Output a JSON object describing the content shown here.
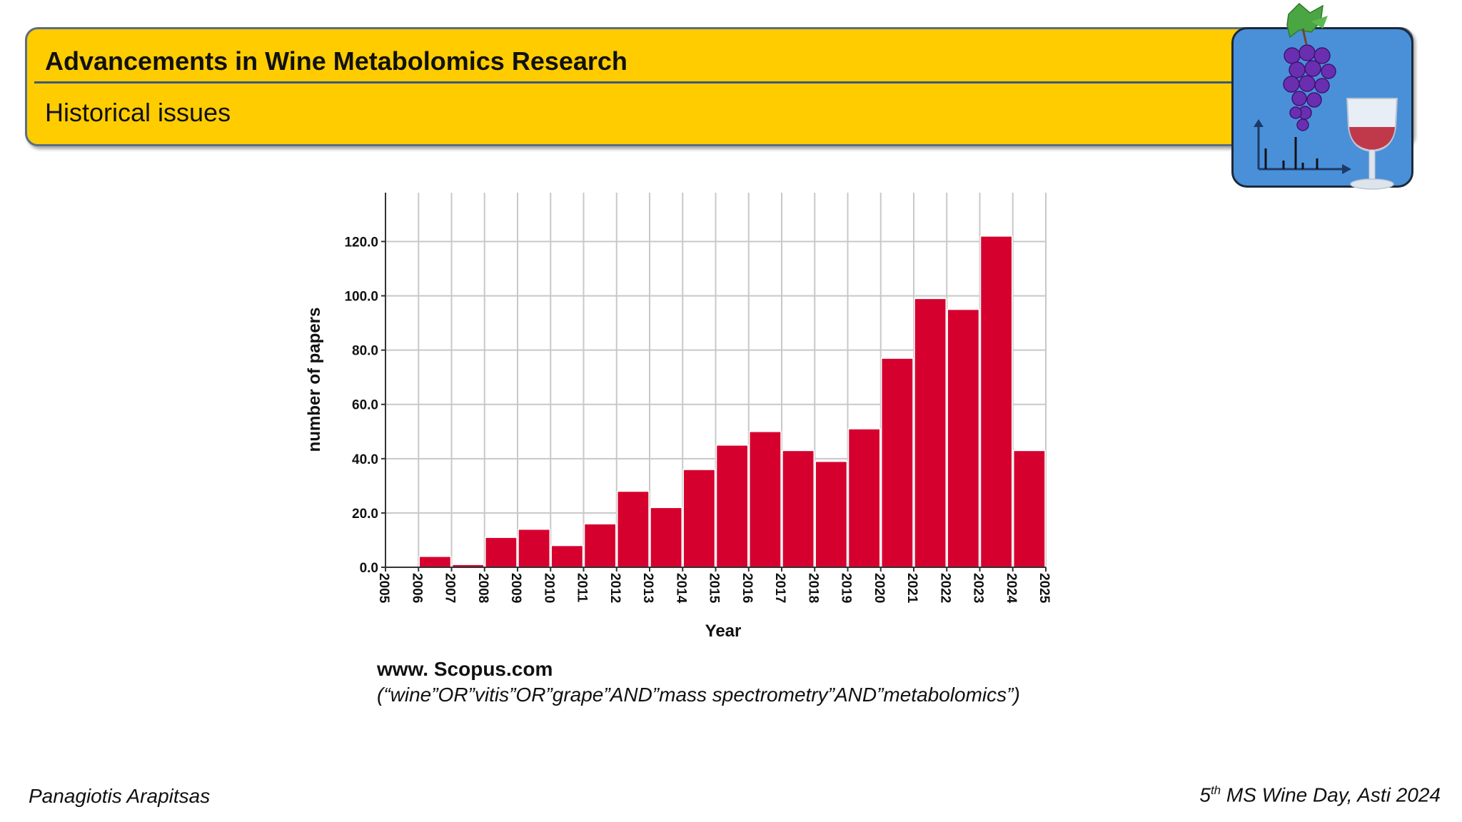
{
  "header": {
    "title": "Advancements in Wine Metabolomics Research",
    "subtitle": "Historical issues"
  },
  "logo": {
    "icon": "grape-wine-spectrum-icon",
    "background": "#4a90d9"
  },
  "chart_data": {
    "type": "bar",
    "title": "",
    "xlabel": "Year",
    "ylabel": "number of papers",
    "x": [
      2006,
      2007,
      2008,
      2009,
      2010,
      2011,
      2012,
      2013,
      2014,
      2015,
      2016,
      2017,
      2018,
      2019,
      2020,
      2021,
      2022,
      2023,
      2024
    ],
    "values": [
      4,
      1,
      11,
      14,
      8,
      16,
      28,
      22,
      36,
      45,
      50,
      43,
      39,
      51,
      77,
      99,
      95,
      122,
      43
    ],
    "xlim": [
      2005,
      2025
    ],
    "ylim": [
      0,
      138
    ],
    "xticks": [
      "2005",
      "2006",
      "2007",
      "2008",
      "2009",
      "2010",
      "2011",
      "2012",
      "2013",
      "2014",
      "2015",
      "2016",
      "2017",
      "2018",
      "2019",
      "2020",
      "2021",
      "2022",
      "2023",
      "2024",
      "2025"
    ],
    "yticks": [
      "0.0",
      "20.0",
      "40.0",
      "60.0",
      "80.0",
      "100.0",
      "120.0"
    ],
    "grid": true,
    "bar_color": "#d6002f"
  },
  "source": {
    "site": "www. Scopus.com",
    "query": "(“wine”OR”vitis”OR”grape”AND”mass spectrometry”AND”metabolomics”)"
  },
  "footer": {
    "author": "Panagiotis Arapitsas",
    "event_num": "5",
    "event_sup": "th",
    "event_rest": " MS Wine Day, Asti 2024"
  }
}
